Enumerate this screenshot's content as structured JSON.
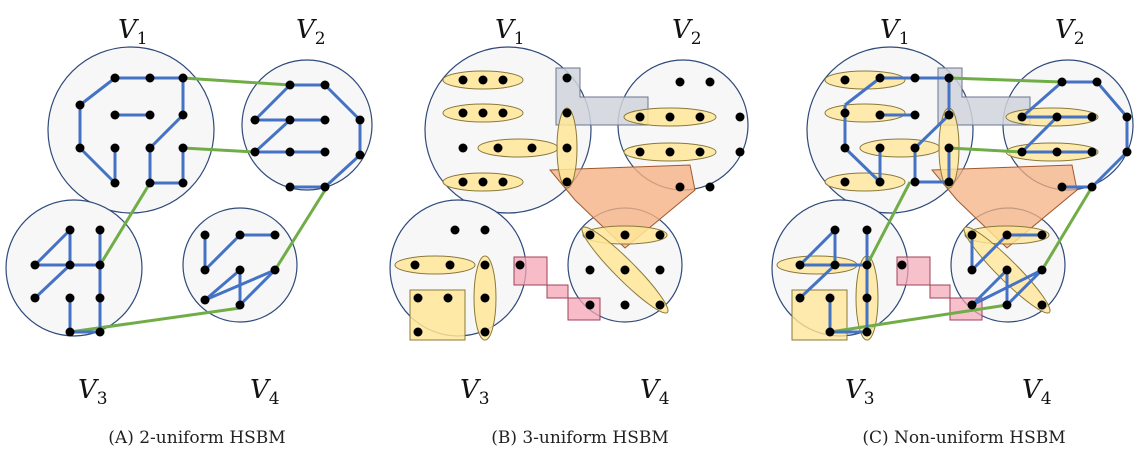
{
  "figure": {
    "panels": [
      {
        "caption": "(A) 2-uniform HSBM",
        "labels": [
          {
            "var": "V",
            "sub": "1"
          },
          {
            "var": "V",
            "sub": "2"
          },
          {
            "var": "V",
            "sub": "3"
          },
          {
            "var": "V",
            "sub": "4"
          }
        ]
      },
      {
        "caption": "(B) 3-uniform HSBM",
        "labels": [
          {
            "var": "V",
            "sub": "1"
          },
          {
            "var": "V",
            "sub": "2"
          },
          {
            "var": "V",
            "sub": "3"
          },
          {
            "var": "V",
            "sub": "4"
          }
        ]
      },
      {
        "caption": "(C) Non-uniform HSBM",
        "labels": [
          {
            "var": "V",
            "sub": "1"
          },
          {
            "var": "V",
            "sub": "2"
          },
          {
            "var": "V",
            "sub": "3"
          },
          {
            "var": "V",
            "sub": "4"
          }
        ]
      }
    ],
    "colors": {
      "community_fill": "#f7f7f7",
      "community_stroke": "#2f4a7a",
      "intra_edge": "#4472c4",
      "inter_edge": "#70ad47",
      "node": "#000000",
      "hyperedge_yellow": "#ffe699",
      "hyperedge_yellow_stroke": "#8a7a3a",
      "hyperedge_gray": "#d0d4dc",
      "hyperedge_orange": "#f4b183",
      "hyperedge_pink": "#f4a6b6"
    }
  }
}
